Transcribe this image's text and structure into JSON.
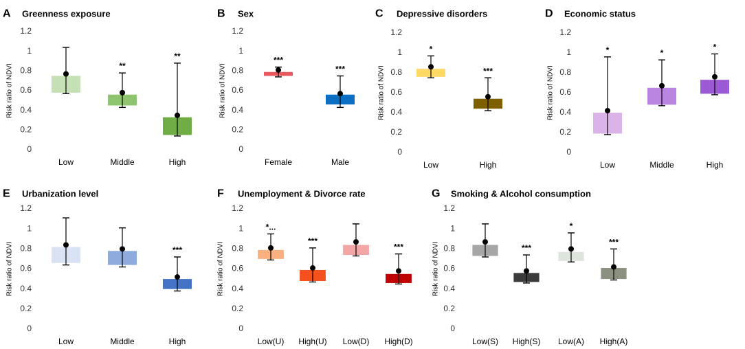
{
  "figure": {
    "y_axis_label": "Risk ratio of NDVI"
  },
  "chart_data": [
    {
      "type": "box",
      "panel": "A",
      "title": "Greenness exposure",
      "ylabel": "Risk ratio of NDVI",
      "ylim": [
        0,
        1.2
      ],
      "yticks": [
        "0",
        "0.2",
        "0.4",
        "0.6",
        "0.8",
        "1",
        "1.2"
      ],
      "categories": [
        "Low",
        "Middle",
        "High"
      ],
      "boxes": [
        {
          "category": "Low",
          "q1": 0.58,
          "q3": 0.75,
          "min": 0.57,
          "max": 1.04,
          "point": 0.77,
          "sig": "",
          "color": "#c5e0b4"
        },
        {
          "category": "Middle",
          "q1": 0.45,
          "q3": 0.56,
          "min": 0.43,
          "max": 0.78,
          "point": 0.58,
          "sig": "**",
          "color": "#8dc46d"
        },
        {
          "category": "High",
          "q1": 0.15,
          "q3": 0.33,
          "min": 0.14,
          "max": 0.88,
          "point": 0.35,
          "sig": "**",
          "color": "#70ad47"
        }
      ]
    },
    {
      "type": "box",
      "panel": "B",
      "title": "Sex",
      "ylabel": "Risk ratio of NDVI",
      "ylim": [
        0,
        1.2
      ],
      "yticks": [
        "0",
        "0.2",
        "0.4",
        "0.6",
        "0.8",
        "1",
        "1.2"
      ],
      "categories": [
        "Female",
        "Male"
      ],
      "boxes": [
        {
          "category": "Female",
          "q1": 0.75,
          "q3": 0.79,
          "min": 0.74,
          "max": 0.84,
          "point": 0.81,
          "sig": "***",
          "color": "#e8585d"
        },
        {
          "category": "Male",
          "q1": 0.46,
          "q3": 0.56,
          "min": 0.43,
          "max": 0.75,
          "point": 0.57,
          "sig": "***",
          "color": "#0a6fc2"
        }
      ]
    },
    {
      "type": "box",
      "panel": "C",
      "title": "Depressive disorders",
      "ylabel": "Risk ratio of NDVI",
      "ylim": [
        0,
        1.2
      ],
      "yticks": [
        "0",
        "0.2",
        "0.4",
        "0.6",
        "0.8",
        "1",
        "1.2"
      ],
      "categories": [
        "Low",
        "High"
      ],
      "boxes": [
        {
          "category": "Low",
          "q1": 0.76,
          "q3": 0.84,
          "min": 0.75,
          "max": 0.97,
          "point": 0.86,
          "sig": "*",
          "color": "#ffd966"
        },
        {
          "category": "High",
          "q1": 0.44,
          "q3": 0.54,
          "min": 0.42,
          "max": 0.75,
          "point": 0.56,
          "sig": "***",
          "color": "#7f6000"
        }
      ]
    },
    {
      "type": "box",
      "panel": "D",
      "title": "Economic status",
      "ylabel": "Risk ratio of NDVI",
      "ylim": [
        0,
        1.2
      ],
      "yticks": [
        "0",
        "0.2",
        "0.4",
        "0.6",
        "0.8",
        "1",
        "1.2"
      ],
      "categories": [
        "Low",
        "Middle",
        "High"
      ],
      "boxes": [
        {
          "category": "Low",
          "q1": 0.19,
          "q3": 0.4,
          "min": 0.18,
          "max": 0.96,
          "point": 0.42,
          "sig": "*",
          "color": "#dab3e8"
        },
        {
          "category": "Middle",
          "q1": 0.48,
          "q3": 0.65,
          "min": 0.47,
          "max": 0.93,
          "point": 0.67,
          "sig": "*",
          "color": "#b985e0"
        },
        {
          "category": "High",
          "q1": 0.59,
          "q3": 0.73,
          "min": 0.58,
          "max": 0.99,
          "point": 0.76,
          "sig": "*",
          "color": "#9b59d4"
        }
      ]
    },
    {
      "type": "box",
      "panel": "E",
      "title": "Urbanization level",
      "ylabel": "Risk ratio of NDVI",
      "ylim": [
        0,
        1.2
      ],
      "yticks": [
        "0",
        "0.2",
        "0.4",
        "0.6",
        "0.8",
        "1",
        "1.2"
      ],
      "categories": [
        "Low",
        "Middle",
        "High"
      ],
      "boxes": [
        {
          "category": "Low",
          "q1": 0.66,
          "q3": 0.82,
          "min": 0.64,
          "max": 1.11,
          "point": 0.84,
          "sig": "",
          "color": "#dae3f3"
        },
        {
          "category": "Middle",
          "q1": 0.64,
          "q3": 0.78,
          "min": 0.62,
          "max": 1.01,
          "point": 0.8,
          "sig": "",
          "color": "#8faadc"
        },
        {
          "category": "High",
          "q1": 0.4,
          "q3": 0.5,
          "min": 0.38,
          "max": 0.72,
          "point": 0.52,
          "sig": "***",
          "color": "#4472c4"
        }
      ]
    },
    {
      "type": "box",
      "panel": "F",
      "title": "Unemployment & Divorce rate",
      "ylabel": "Risk ratio of NDVI",
      "ylim": [
        0,
        1.2
      ],
      "yticks": [
        "0",
        "0.2",
        "0.4",
        "0.6",
        "0.8",
        "1",
        "1.2"
      ],
      "categories": [
        "Low(U)",
        "High(U)",
        "Low(D)",
        "High(D)"
      ],
      "boxes": [
        {
          "category": "Low(U)",
          "q1": 0.7,
          "q3": 0.79,
          "min": 0.69,
          "max": 0.95,
          "point": 0.81,
          "sig": "*...",
          "color": "#fbb080"
        },
        {
          "category": "High(U)",
          "q1": 0.48,
          "q3": 0.59,
          "min": 0.47,
          "max": 0.81,
          "point": 0.61,
          "sig": "***",
          "color": "#f4511e"
        },
        {
          "category": "Low(D)",
          "q1": 0.74,
          "q3": 0.84,
          "min": 0.73,
          "max": 1.05,
          "point": 0.87,
          "sig": "",
          "color": "#f4a5a5"
        },
        {
          "category": "High(D)",
          "q1": 0.46,
          "q3": 0.55,
          "min": 0.45,
          "max": 0.75,
          "point": 0.58,
          "sig": "***",
          "color": "#c00000"
        }
      ]
    },
    {
      "type": "box",
      "panel": "G",
      "title": "Smoking & Alcohol consumption",
      "ylabel": "Risk ratio of NDVI",
      "ylim": [
        0,
        1.2
      ],
      "yticks": [
        "0",
        "0.2",
        "0.4",
        "0.6",
        "0.8",
        "1",
        "1.2"
      ],
      "categories": [
        "Low(S)",
        "High(S)",
        "Low(A)",
        "High(A)"
      ],
      "boxes": [
        {
          "category": "Low(S)",
          "q1": 0.73,
          "q3": 0.84,
          "min": 0.72,
          "max": 1.05,
          "point": 0.87,
          "sig": "",
          "color": "#a6a6a6"
        },
        {
          "category": "High(S)",
          "q1": 0.47,
          "q3": 0.56,
          "min": 0.46,
          "max": 0.74,
          "point": 0.58,
          "sig": "***",
          "color": "#3b3b3b"
        },
        {
          "category": "Low(A)",
          "q1": 0.68,
          "q3": 0.77,
          "min": 0.67,
          "max": 0.96,
          "point": 0.8,
          "sig": "*",
          "color": "#dde5dd"
        },
        {
          "category": "High(A)",
          "q1": 0.5,
          "q3": 0.61,
          "min": 0.49,
          "max": 0.8,
          "point": 0.62,
          "sig": "***",
          "color": "#8a9181"
        }
      ]
    }
  ]
}
